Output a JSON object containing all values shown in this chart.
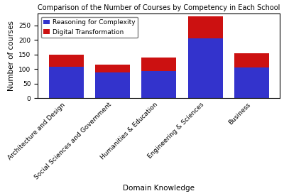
{
  "title": "Comparison of the Number of Courses by Competency in Each School",
  "xlabel": "Domain Knowledge",
  "ylabel": "Number of courses",
  "categories": [
    "Architecture and Design",
    "Social Sciences and Government",
    "Humanities & Education",
    "Engineering & Sciences",
    "Business"
  ],
  "reasoning_values": [
    108,
    87,
    93,
    205,
    105
  ],
  "digital_values": [
    42,
    28,
    46,
    75,
    48
  ],
  "reasoning_color": "#3333cc",
  "digital_color": "#cc1111",
  "legend_labels": [
    "Reasoning for Complexity",
    "Digital Transformation"
  ],
  "ylim": [
    0,
    290
  ],
  "yticks": [
    0,
    50,
    100,
    150,
    200,
    250
  ],
  "title_fontsize": 7.0,
  "axis_label_fontsize": 7.5,
  "tick_fontsize": 6.5,
  "legend_fontsize": 6.5,
  "bar_width": 0.75,
  "figsize": [
    4.0,
    2.76
  ],
  "dpi": 100
}
